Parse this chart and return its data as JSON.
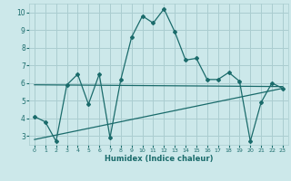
{
  "xlabel": "Humidex (Indice chaleur)",
  "xlim": [
    -0.5,
    23.5
  ],
  "ylim": [
    2.5,
    10.5
  ],
  "xticks": [
    0,
    1,
    2,
    3,
    4,
    5,
    6,
    7,
    8,
    9,
    10,
    11,
    12,
    13,
    14,
    15,
    16,
    17,
    18,
    19,
    20,
    21,
    22,
    23
  ],
  "yticks": [
    3,
    4,
    5,
    6,
    7,
    8,
    9,
    10
  ],
  "bg_color": "#cce8ea",
  "grid_color": "#aacdd0",
  "line_color": "#1a6b6b",
  "main_x": [
    0,
    1,
    2,
    3,
    4,
    5,
    6,
    7,
    8,
    9,
    10,
    11,
    12,
    13,
    14,
    15,
    16,
    17,
    18,
    19,
    20,
    21,
    22,
    23
  ],
  "main_y": [
    4.1,
    3.8,
    2.7,
    5.9,
    6.5,
    4.8,
    6.5,
    2.9,
    6.2,
    8.6,
    9.8,
    9.4,
    10.2,
    8.9,
    7.3,
    7.4,
    6.2,
    6.2,
    6.6,
    6.1,
    2.7,
    4.9,
    6.0,
    5.7
  ],
  "trend1_x": [
    0,
    23
  ],
  "trend1_y": [
    5.9,
    5.8
  ],
  "trend2_x": [
    0,
    23
  ],
  "trend2_y": [
    2.8,
    5.7
  ]
}
